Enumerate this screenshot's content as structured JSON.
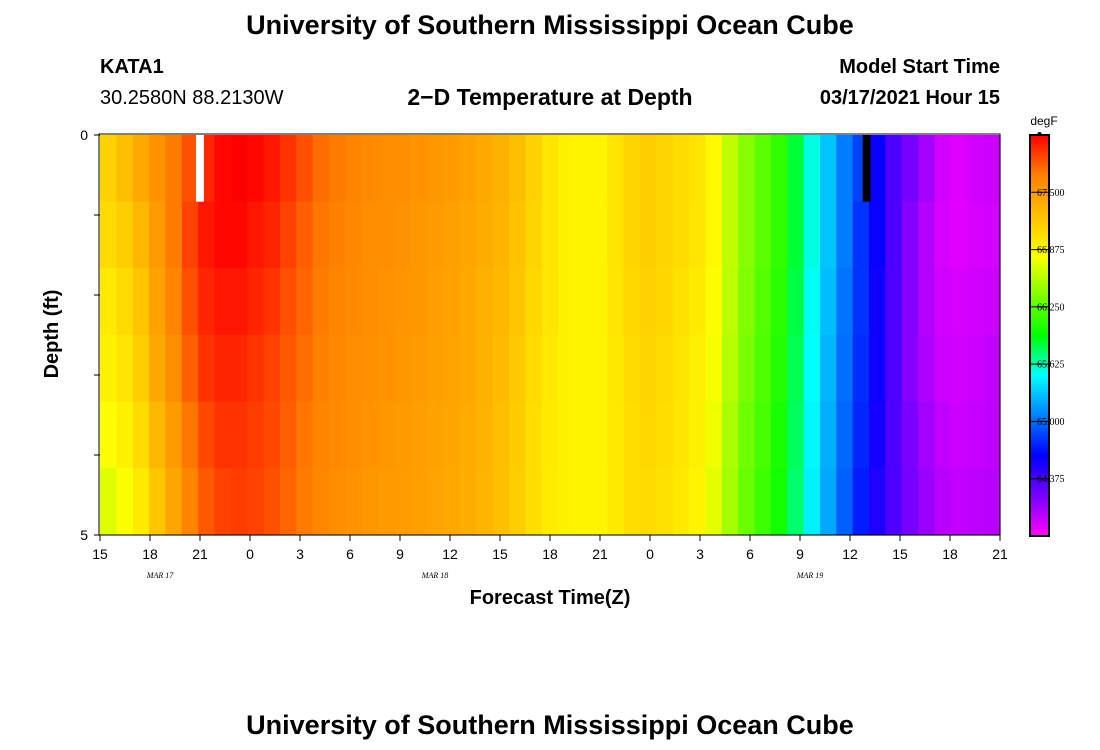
{
  "header": {
    "title": "University of Southern Mississippi Ocean Cube",
    "station_id": "KATA1",
    "station_coords": "30.2580N 88.2130W",
    "plot_title": "2−D Temperature at Depth",
    "model_start_label": "Model Start Time",
    "model_start_value": "03/17/2021 Hour 15"
  },
  "footer": {
    "title": "University of Southern Mississippi Ocean Cube"
  },
  "chart_data": {
    "type": "heatmap",
    "title": "2−D Temperature at Depth",
    "xlabel": "Forecast Time(Z)",
    "ylabel": "Depth (ft)",
    "x_tick_labels": [
      "15",
      "18",
      "21",
      "0",
      "3",
      "6",
      "9",
      "12",
      "15",
      "18",
      "21",
      "0",
      "3",
      "6",
      "9",
      "12",
      "15",
      "18",
      "21"
    ],
    "date_labels": [
      {
        "label": "MAR 17",
        "tick_index": 1.2
      },
      {
        "label": "MAR 18",
        "tick_index": 6.7
      },
      {
        "label": "MAR 19",
        "tick_index": 14.2
      }
    ],
    "hours_start": "03/17/2021 Hour 15",
    "hours_range": [
      0,
      54
    ],
    "hour_step": 1,
    "depth_levels": [
      0,
      1,
      2,
      3,
      4,
      5
    ],
    "ylim": [
      5,
      0
    ],
    "y_tick_labels": [
      "0",
      "5"
    ],
    "depth_unit": "ft",
    "values_degF": [
      [
        67.12,
        67.25,
        67.4,
        67.55,
        67.7,
        67.85,
        68.0,
        68.1,
        68.15,
        68.1,
        68.05,
        67.95,
        67.85,
        67.75,
        67.7,
        67.65,
        67.62,
        67.6,
        67.58,
        67.55,
        67.52,
        67.5,
        67.45,
        67.4,
        67.35,
        67.25,
        67.12,
        67.0,
        66.9,
        66.88,
        66.88,
        67.0,
        67.1,
        67.15,
        67.1,
        67.05,
        67.0,
        66.85,
        66.6,
        66.4,
        66.25,
        66.1,
        65.85,
        65.55,
        65.3,
        65.05,
        64.85,
        64.6,
        64.35,
        64.2,
        64.05,
        63.9,
        63.85,
        63.9,
        63.92
      ],
      [
        67.05,
        67.15,
        67.3,
        67.5,
        67.7,
        67.9,
        68.05,
        68.1,
        68.1,
        68.05,
        68.0,
        67.9,
        67.8,
        67.72,
        67.68,
        67.63,
        67.6,
        67.58,
        67.56,
        67.53,
        67.5,
        67.47,
        67.42,
        67.38,
        67.32,
        67.22,
        67.1,
        67.0,
        66.9,
        66.88,
        66.88,
        67.0,
        67.1,
        67.15,
        67.1,
        67.05,
        66.98,
        66.85,
        66.6,
        66.4,
        66.25,
        66.1,
        65.85,
        65.55,
        65.3,
        65.05,
        64.8,
        64.6,
        64.35,
        64.15,
        64.0,
        63.88,
        63.85,
        63.88,
        63.9
      ],
      [
        66.95,
        67.05,
        67.2,
        67.45,
        67.65,
        67.85,
        68.0,
        68.05,
        68.05,
        68.0,
        67.95,
        67.85,
        67.78,
        67.7,
        67.65,
        67.62,
        67.58,
        67.56,
        67.54,
        67.52,
        67.48,
        67.45,
        67.4,
        67.35,
        67.3,
        67.2,
        67.08,
        66.98,
        66.9,
        66.88,
        66.88,
        66.98,
        67.08,
        67.12,
        67.08,
        67.02,
        66.95,
        66.82,
        66.58,
        66.38,
        66.22,
        66.08,
        65.82,
        65.52,
        65.28,
        65.02,
        64.8,
        64.58,
        64.35,
        64.15,
        64.0,
        63.9,
        63.88,
        63.9,
        63.92
      ],
      [
        66.9,
        67.0,
        67.15,
        67.4,
        67.6,
        67.8,
        67.95,
        68.0,
        68.0,
        67.95,
        67.9,
        67.82,
        67.75,
        67.68,
        67.63,
        67.6,
        67.57,
        67.55,
        67.53,
        67.5,
        67.47,
        67.44,
        67.4,
        67.35,
        67.28,
        67.18,
        67.06,
        66.96,
        66.9,
        66.88,
        66.88,
        66.97,
        67.06,
        67.1,
        67.06,
        67.0,
        66.92,
        66.78,
        66.55,
        66.35,
        66.2,
        66.05,
        65.8,
        65.5,
        65.25,
        65.0,
        64.78,
        64.58,
        64.35,
        64.15,
        64.02,
        63.92,
        63.9,
        63.92,
        63.95
      ],
      [
        66.8,
        66.9,
        67.05,
        67.3,
        67.5,
        67.72,
        67.88,
        67.95,
        67.95,
        67.92,
        67.88,
        67.8,
        67.72,
        67.66,
        67.62,
        67.58,
        67.55,
        67.53,
        67.51,
        67.48,
        67.45,
        67.42,
        67.38,
        67.33,
        67.26,
        67.16,
        67.04,
        66.95,
        66.9,
        66.88,
        66.88,
        66.96,
        67.04,
        67.08,
        67.04,
        66.98,
        66.9,
        66.75,
        66.52,
        66.32,
        66.18,
        66.02,
        65.78,
        65.48,
        65.22,
        64.98,
        64.75,
        64.55,
        64.35,
        64.18,
        64.05,
        63.95,
        63.92,
        63.94,
        63.96
      ],
      [
        66.7,
        66.8,
        66.95,
        67.2,
        67.42,
        67.65,
        67.82,
        67.9,
        67.92,
        67.9,
        67.85,
        67.78,
        67.7,
        67.64,
        67.6,
        67.56,
        67.53,
        67.51,
        67.49,
        67.47,
        67.44,
        67.41,
        67.37,
        67.32,
        67.25,
        67.15,
        67.03,
        66.94,
        66.9,
        66.88,
        66.88,
        66.95,
        67.03,
        67.06,
        67.02,
        66.96,
        66.88,
        66.72,
        66.5,
        66.3,
        66.15,
        66.0,
        65.75,
        65.45,
        65.2,
        64.95,
        64.72,
        64.52,
        64.35,
        64.2,
        64.08,
        63.98,
        63.95,
        63.96,
        63.98
      ]
    ],
    "markers": [
      {
        "hour": 6,
        "depth": 0,
        "color": "#ffffff"
      },
      {
        "hour": 46,
        "depth": 0,
        "color": "#000000"
      }
    ],
    "colorbar": {
      "unit": "degF",
      "min": 63.75,
      "max": 68.125,
      "tick_labels": [
        "67.500",
        "66.875",
        "66.250",
        "65.625",
        "65.000",
        "64.375"
      ],
      "tick_values": [
        67.5,
        66.875,
        66.25,
        65.625,
        65.0,
        64.375
      ],
      "color_stops": [
        "#ff00ff",
        "#7a00ff",
        "#0000ff",
        "#0080ff",
        "#00ffff",
        "#00ff00",
        "#80ff00",
        "#ffff00",
        "#ffbf00",
        "#ff8000",
        "#ff0000"
      ]
    },
    "grid": false,
    "legend": "right"
  }
}
